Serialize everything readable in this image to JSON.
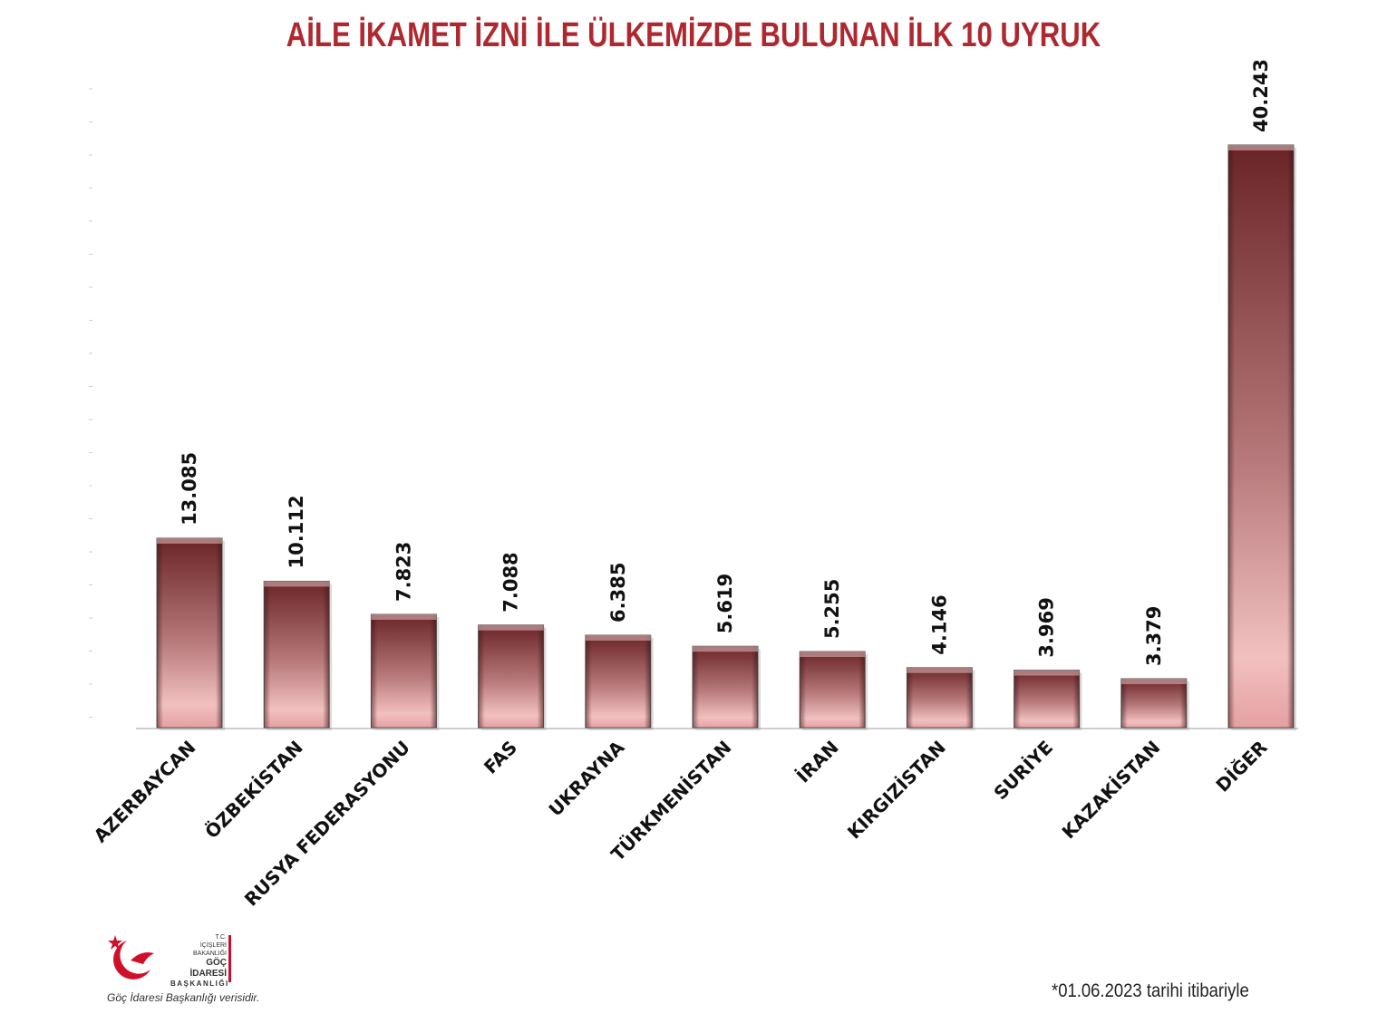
{
  "chart_data": {
    "type": "bar",
    "title": "AİLE İKAMET İZNİ İLE ÜLKEMİZDE BULUNAN İLK 10 UYRUK",
    "categories": [
      "AZERBAYCAN",
      "ÖZBEKİSTAN",
      "RUSYA FEDERASYONU",
      "FAS",
      "UKRAYNA",
      "TÜRKMENİSTAN",
      "İRAN",
      "KIRGIZİSTAN",
      "SURİYE",
      "KAZAKİSTAN",
      "DİĞER"
    ],
    "values": [
      13085,
      10112,
      7823,
      7088,
      6385,
      5619,
      5255,
      4146,
      3969,
      3379,
      40243
    ],
    "value_labels": [
      "13.085",
      "10.112",
      "7.823",
      "7.088",
      "6.385",
      "5.619",
      "5.255",
      "4.146",
      "3.969",
      "3.379",
      "40.243"
    ],
    "ylim": [
      0,
      40243
    ],
    "grid": false,
    "legend": "none",
    "bar_color_top": "#6e2a2c",
    "bar_color_bottom": "#f0b8b8"
  },
  "footer": {
    "logo_tc": "T.C.",
    "logo_ministry": "İÇİŞLERİ BAKANLIĞI",
    "logo_name": "GÖÇ İDARESİ",
    "logo_name2": "BAŞKANLIĞI",
    "source": "Göç İdaresi Başkanlığı verisidir.",
    "date_note": "*01.06.2023 tarihi itibariyle"
  }
}
